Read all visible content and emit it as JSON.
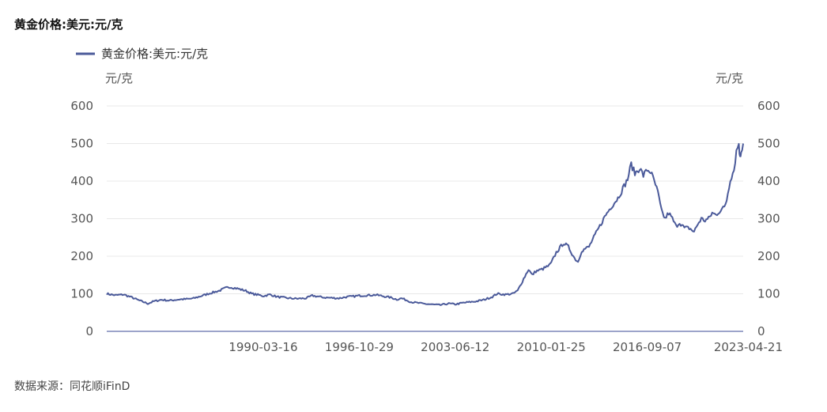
{
  "title": "黄金价格:美元:元/克",
  "source": "数据来源：同花顺iFinD",
  "colors": {
    "series": "#4b5a9a",
    "grid": "#e8e8e8",
    "axis": "#7b86b8"
  },
  "chart_data": {
    "type": "line",
    "title": "黄金价格:美元:元/克",
    "left_unit": "元/克",
    "right_unit": "元/克",
    "ylim": [
      0,
      600
    ],
    "y_ticks": [
      0,
      100,
      200,
      300,
      400,
      500,
      600
    ],
    "x_tick_labels": [
      "1990-03-16",
      "1996-10-29",
      "2003-06-12",
      "2010-01-25",
      "2016-09-07",
      "2023-04-21"
    ],
    "x_range": [
      "1979-06-01",
      "2023-04-21"
    ],
    "grid": true,
    "legend_position": "top-left",
    "series": [
      {
        "name": "黄金价格:美元:元/克",
        "points": [
          [
            "1979-06-01",
            100
          ],
          [
            "1980-01-01",
            96
          ],
          [
            "1980-08-01",
            98
          ],
          [
            "1981-03-01",
            90
          ],
          [
            "1981-09-01",
            82
          ],
          [
            "1982-04-01",
            74
          ],
          [
            "1982-09-01",
            80
          ],
          [
            "1983-03-01",
            84
          ],
          [
            "1983-10-01",
            82
          ],
          [
            "1984-06-01",
            85
          ],
          [
            "1985-01-01",
            86
          ],
          [
            "1985-06-01",
            88
          ],
          [
            "1986-01-01",
            95
          ],
          [
            "1986-08-01",
            102
          ],
          [
            "1987-03-01",
            108
          ],
          [
            "1987-08-01",
            115
          ],
          [
            "1987-12-01",
            118
          ],
          [
            "1988-06-01",
            114
          ],
          [
            "1989-01-01",
            108
          ],
          [
            "1989-06-01",
            100
          ],
          [
            "1990-01-01",
            96
          ],
          [
            "1990-03-16",
            94
          ],
          [
            "1990-09-01",
            98
          ],
          [
            "1991-03-01",
            92
          ],
          [
            "1992-01-01",
            88
          ],
          [
            "1992-08-01",
            87
          ],
          [
            "1993-03-01",
            88
          ],
          [
            "1993-08-01",
            95
          ],
          [
            "1994-06-01",
            90
          ],
          [
            "1995-06-01",
            88
          ],
          [
            "1996-01-01",
            92
          ],
          [
            "1996-06-01",
            93
          ],
          [
            "1996-10-29",
            95
          ],
          [
            "1997-06-01",
            96
          ],
          [
            "1998-01-01",
            97
          ],
          [
            "1998-06-01",
            94
          ],
          [
            "1999-01-01",
            90
          ],
          [
            "1999-06-01",
            85
          ],
          [
            "1999-10-01",
            88
          ],
          [
            "2000-06-01",
            78
          ],
          [
            "2001-03-01",
            74
          ],
          [
            "2001-09-01",
            72
          ],
          [
            "2002-06-01",
            70
          ],
          [
            "2003-01-01",
            74
          ],
          [
            "2003-06-12",
            72
          ],
          [
            "2004-01-01",
            76
          ],
          [
            "2004-12-01",
            80
          ],
          [
            "2005-06-01",
            84
          ],
          [
            "2006-01-01",
            92
          ],
          [
            "2006-05-01",
            100
          ],
          [
            "2006-12-01",
            98
          ],
          [
            "2007-06-01",
            100
          ],
          [
            "2007-10-01",
            108
          ],
          [
            "2008-03-01",
            140
          ],
          [
            "2008-07-01",
            165
          ],
          [
            "2008-10-01",
            150
          ],
          [
            "2009-01-01",
            160
          ],
          [
            "2009-06-01",
            165
          ],
          [
            "2009-12-01",
            175
          ],
          [
            "2010-01-25",
            182
          ],
          [
            "2010-06-01",
            210
          ],
          [
            "2010-12-01",
            235
          ],
          [
            "2011-04-01",
            225
          ],
          [
            "2011-09-01",
            195
          ],
          [
            "2011-12-01",
            185
          ],
          [
            "2012-03-01",
            215
          ],
          [
            "2012-09-01",
            225
          ],
          [
            "2013-01-01",
            250
          ],
          [
            "2013-06-01",
            280
          ],
          [
            "2013-10-01",
            305
          ],
          [
            "2014-03-01",
            330
          ],
          [
            "2014-09-01",
            355
          ],
          [
            "2015-01-01",
            380
          ],
          [
            "2015-05-01",
            405
          ],
          [
            "2015-08-01",
            445
          ],
          [
            "2015-11-01",
            420
          ],
          [
            "2016-03-01",
            435
          ],
          [
            "2016-06-01",
            415
          ],
          [
            "2016-09-07",
            430
          ],
          [
            "2016-12-01",
            425
          ],
          [
            "2017-03-01",
            400
          ],
          [
            "2017-06-01",
            370
          ],
          [
            "2017-09-01",
            320
          ],
          [
            "2017-12-01",
            300
          ],
          [
            "2018-03-01",
            315
          ],
          [
            "2018-06-01",
            300
          ],
          [
            "2018-09-01",
            280
          ],
          [
            "2018-12-01",
            290
          ],
          [
            "2019-04-01",
            275
          ],
          [
            "2019-08-01",
            275
          ],
          [
            "2019-12-01",
            265
          ],
          [
            "2020-03-01",
            285
          ],
          [
            "2020-06-01",
            300
          ],
          [
            "2020-09-01",
            295
          ],
          [
            "2020-12-01",
            300
          ],
          [
            "2021-03-01",
            315
          ],
          [
            "2021-06-01",
            310
          ],
          [
            "2021-09-01",
            320
          ],
          [
            "2022-01-01",
            330
          ],
          [
            "2022-03-01",
            350
          ],
          [
            "2022-06-01",
            405
          ],
          [
            "2022-09-01",
            430
          ],
          [
            "2022-11-01",
            480
          ],
          [
            "2023-01-01",
            500
          ],
          [
            "2023-02-01",
            460
          ],
          [
            "2023-03-01",
            480
          ],
          [
            "2023-04-21",
            500
          ]
        ]
      }
    ]
  }
}
